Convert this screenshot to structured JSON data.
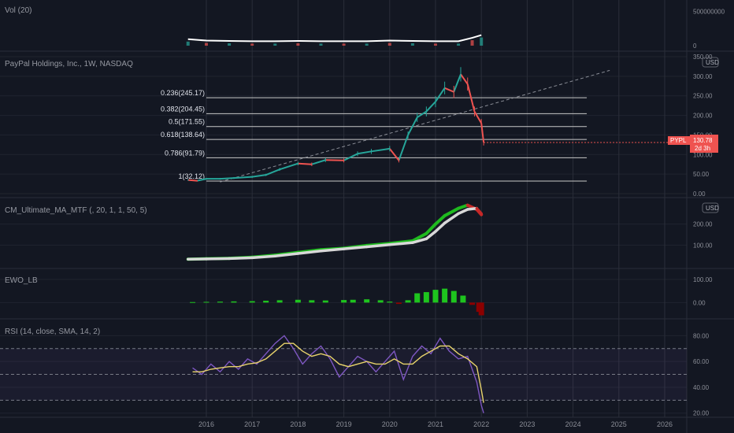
{
  "x_axis": {
    "years": [
      "2016",
      "2017",
      "2018",
      "2019",
      "2020",
      "2021",
      "2022",
      "2023",
      "2024",
      "2025",
      "2026"
    ]
  },
  "panes": {
    "vol": {
      "title": "Vol (20)",
      "ticks": [
        "500000000",
        "0"
      ]
    },
    "price": {
      "title": "PayPal Holdings, Inc., 1W, NASDAQ",
      "ticks": [
        "350.00",
        "300.00",
        "250.00",
        "200.00",
        "150.00",
        "100.00",
        "50.00",
        "0.00"
      ],
      "currency_label": "USD"
    },
    "cm": {
      "title": "CM_Ultimate_MA_MTF (, 20, 1, 1, 50, 5)",
      "ticks": [
        "200.00",
        "100.00"
      ],
      "currency_label": "USD"
    },
    "ewo": {
      "title": "EWO_LB",
      "ticks": [
        "100.00",
        "0.00"
      ]
    },
    "rsi": {
      "title": "RSI (14, close, SMA, 14, 2)",
      "ticks": [
        "80.00",
        "60.00",
        "40.00",
        "20.00"
      ]
    }
  },
  "price_badge": {
    "symbol": "PYPL",
    "price": "130.78",
    "countdown": "2d 3h"
  },
  "colors": {
    "background": "#131722",
    "grid": "#2a2e39",
    "up": "#26a69a",
    "down": "#ef5350",
    "ma_green": "#1fba1f",
    "ma_red": "#c62828",
    "ma_white": "#d8d8d8",
    "ewo_green": "#1ec41e",
    "ewo_red": "#8b0000",
    "rsi_line": "#7e57c2",
    "rsi_sma": "#e8d36b",
    "fib_line": "#c8c8c8"
  },
  "chart_data": [
    {
      "type": "bar",
      "pane": "Vol (20)",
      "title": "Vol (20)",
      "x": [
        2015.6,
        2016.0,
        2016.5,
        2017.0,
        2017.5,
        2018.0,
        2018.5,
        2019.0,
        2019.5,
        2020.0,
        2020.5,
        2021.0,
        2021.5,
        2021.8,
        2022.0
      ],
      "values": [
        60000000,
        40000000,
        35000000,
        30000000,
        30000000,
        35000000,
        30000000,
        30000000,
        30000000,
        40000000,
        35000000,
        30000000,
        30000000,
        80000000,
        120000000
      ],
      "ylim": [
        0,
        600000000
      ],
      "grid": true
    },
    {
      "type": "line",
      "pane": "PayPal Holdings, Inc., 1W, NASDAQ",
      "title": "PayPal Holdings, Inc., 1W, NASDAQ",
      "x": [
        2015.6,
        2015.8,
        2016.0,
        2016.3,
        2016.6,
        2017.0,
        2017.3,
        2017.6,
        2018.0,
        2018.3,
        2018.6,
        2019.0,
        2019.3,
        2019.6,
        2020.0,
        2020.2,
        2020.4,
        2020.6,
        2020.8,
        2021.0,
        2021.2,
        2021.4,
        2021.55,
        2021.7,
        2021.85,
        2022.0,
        2022.05
      ],
      "series": [
        {
          "values": [
            35,
            33,
            38,
            38,
            40,
            43,
            48,
            62,
            77,
            75,
            86,
            85,
            102,
            108,
            115,
            85,
            150,
            195,
            210,
            235,
            270,
            260,
            305,
            280,
            210,
            180,
            131
          ]
        }
      ],
      "ylim": [
        0,
        350
      ],
      "grid": true,
      "fibonacci": [
        {
          "label": "0.236(245.17)",
          "value": 245.17
        },
        {
          "label": "0.382(204.45)",
          "value": 204.45
        },
        {
          "label": "0.5(171.55)",
          "value": 171.55
        },
        {
          "label": "0.618(138.64)",
          "value": 138.64
        },
        {
          "label": "0.786(91.79)",
          "value": 91.79
        },
        {
          "label": "1(32.12)",
          "value": 32.12
        }
      ],
      "last_price": 130.78
    },
    {
      "type": "line",
      "pane": "CM_Ultimate_MA_MTF (, 20, 1, 1, 50, 5)",
      "title": "CM_Ultimate_MA_MTF (, 20, 1, 1, 50, 5)",
      "x": [
        2015.6,
        2016.0,
        2016.5,
        2017.0,
        2017.5,
        2018.0,
        2018.5,
        2019.0,
        2019.5,
        2020.0,
        2020.5,
        2020.8,
        2021.0,
        2021.2,
        2021.5,
        2021.7,
        2021.9,
        2022.0
      ],
      "series": [
        {
          "values": [
            33,
            35,
            37,
            42,
            52,
            65,
            78,
            85,
            98,
            108,
            120,
            155,
            200,
            240,
            275,
            290,
            270,
            245
          ]
        },
        {
          "values": [
            33,
            34,
            36,
            40,
            48,
            60,
            72,
            82,
            92,
            102,
            112,
            130,
            165,
            205,
            250,
            270,
            275,
            250
          ]
        }
      ],
      "ylim": [
        0,
        300
      ],
      "grid": true
    },
    {
      "type": "bar",
      "pane": "EWO_LB",
      "title": "EWO_LB",
      "x": [
        2015.7,
        2016.0,
        2016.3,
        2016.6,
        2017.0,
        2017.3,
        2017.6,
        2018.0,
        2018.3,
        2018.6,
        2019.0,
        2019.2,
        2019.5,
        2019.8,
        2020.0,
        2020.2,
        2020.4,
        2020.6,
        2020.8,
        2021.0,
        2021.2,
        2021.4,
        2021.6,
        2021.8,
        2021.95,
        2022.0
      ],
      "values": [
        2,
        3,
        4,
        5,
        6,
        8,
        10,
        12,
        10,
        9,
        11,
        12,
        14,
        10,
        4,
        -6,
        10,
        40,
        45,
        55,
        60,
        50,
        30,
        -10,
        -40,
        -55
      ],
      "ylim": [
        -60,
        130
      ],
      "grid": true
    },
    {
      "type": "line",
      "pane": "RSI (14, close, SMA, 14, 2)",
      "title": "RSI (14, close, SMA, 14, 2)",
      "x": [
        2015.7,
        2015.9,
        2016.1,
        2016.3,
        2016.5,
        2016.7,
        2016.9,
        2017.1,
        2017.3,
        2017.5,
        2017.7,
        2017.9,
        2018.1,
        2018.3,
        2018.5,
        2018.7,
        2018.9,
        2019.1,
        2019.3,
        2019.5,
        2019.7,
        2019.9,
        2020.1,
        2020.3,
        2020.5,
        2020.7,
        2020.9,
        2021.1,
        2021.3,
        2021.5,
        2021.7,
        2021.9,
        2022.0,
        2022.05
      ],
      "series": [
        {
          "values": [
            55,
            50,
            58,
            52,
            60,
            54,
            62,
            58,
            66,
            74,
            80,
            70,
            58,
            66,
            72,
            62,
            48,
            56,
            64,
            60,
            52,
            60,
            68,
            46,
            64,
            72,
            66,
            78,
            68,
            62,
            64,
            44,
            26,
            20
          ]
        },
        {
          "values": [
            52,
            52,
            54,
            55,
            56,
            56,
            58,
            59,
            62,
            68,
            74,
            74,
            68,
            64,
            66,
            64,
            58,
            56,
            58,
            60,
            58,
            58,
            62,
            58,
            58,
            64,
            68,
            72,
            72,
            66,
            62,
            56,
            38,
            28
          ]
        }
      ],
      "ylim": [
        18,
        90
      ],
      "levels": [
        70,
        50,
        30
      ],
      "grid": true
    }
  ]
}
